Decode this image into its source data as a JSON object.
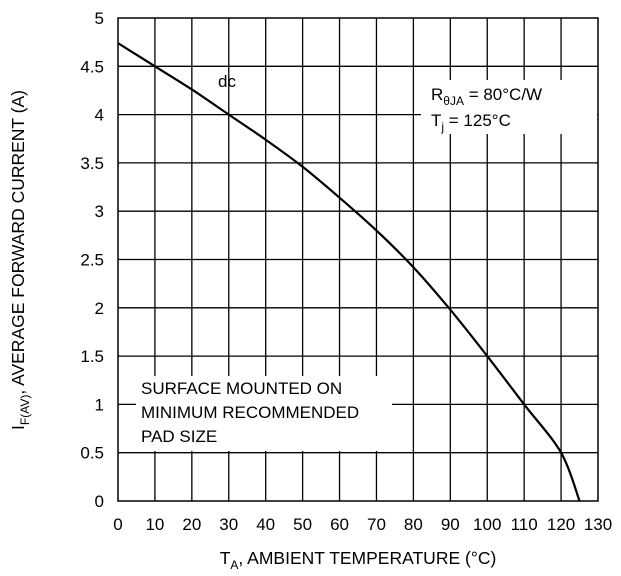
{
  "chart_data": {
    "type": "line",
    "title": "",
    "xlabel": {
      "main": "T",
      "sub": "A",
      "rest": ", AMBIENT TEMPERATURE (°C)"
    },
    "ylabel": {
      "main": "I",
      "sub": "F(AV)",
      "rest": ", AVERAGE FORWARD CURRENT (A)"
    },
    "xlim": [
      0,
      130
    ],
    "ylim": [
      0,
      5
    ],
    "x_ticks": [
      "0",
      "10",
      "20",
      "30",
      "40",
      "50",
      "60",
      "70",
      "80",
      "90",
      "100",
      "110",
      "120",
      "130"
    ],
    "y_ticks": [
      "0",
      "0.5",
      "1",
      "1.5",
      "2",
      "2.5",
      "3",
      "3.5",
      "4",
      "4.5",
      "5"
    ],
    "grid": true,
    "series": [
      {
        "name": "dc",
        "x": [
          0,
          10,
          20,
          30,
          40,
          50,
          60,
          70,
          80,
          90,
          100,
          110,
          120,
          125
        ],
        "y": [
          4.74,
          4.5,
          4.26,
          4.0,
          3.74,
          3.46,
          3.14,
          2.8,
          2.42,
          1.98,
          1.5,
          1.0,
          0.5,
          0.0
        ]
      }
    ],
    "annotations": {
      "series_label": "dc",
      "r_theta": {
        "main": "R",
        "sub": "θJA",
        "rest": " = 80°C/W"
      },
      "tj": {
        "main": "T",
        "sub": "j",
        "rest": " = 125°C"
      },
      "mount_lines": [
        "SURFACE MOUNTED ON",
        "MINIMUM RECOMMENDED",
        "PAD SIZE"
      ]
    }
  }
}
